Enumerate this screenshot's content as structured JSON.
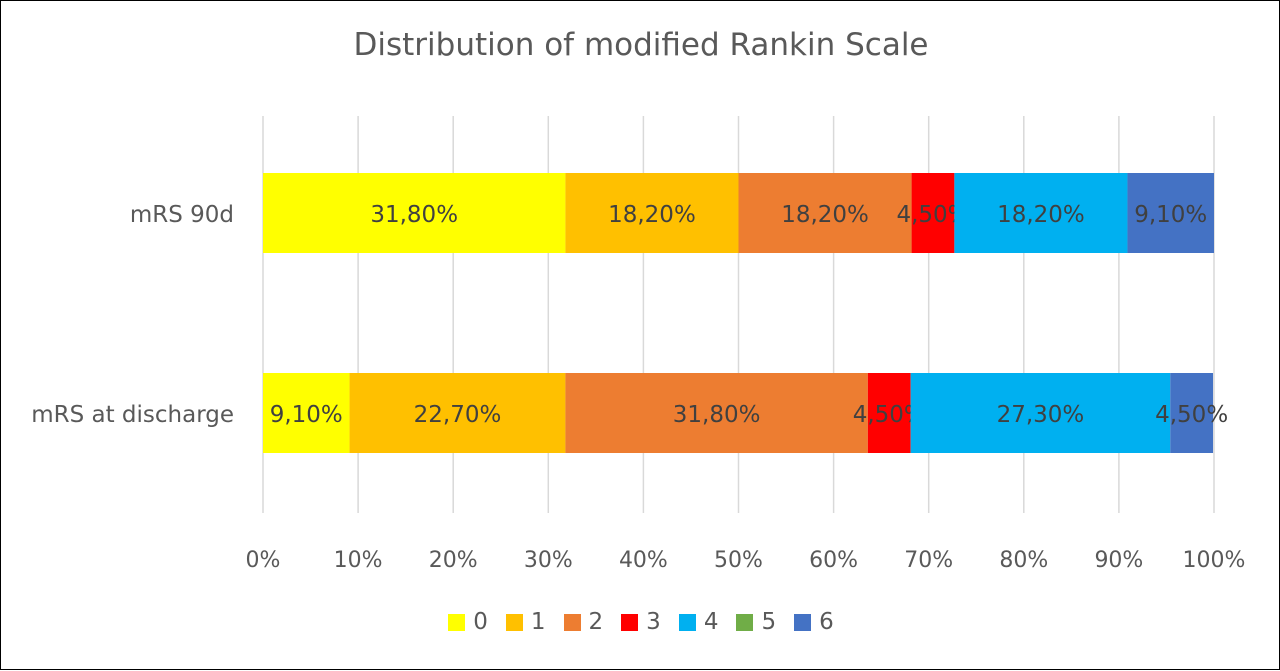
{
  "chart_data": {
    "type": "bar",
    "orientation": "horizontal",
    "stacked": true,
    "title": "Distribution of modified Rankin Scale",
    "categories": [
      "mRS 90d",
      "mRS at discharge"
    ],
    "series": [
      {
        "name": "0",
        "color": "#FFFF00",
        "values": [
          31.8,
          9.1
        ],
        "labels": [
          "31,80%",
          "9,10%"
        ]
      },
      {
        "name": "1",
        "color": "#FFC000",
        "values": [
          18.2,
          22.7
        ],
        "labels": [
          "18,20%",
          "22,70%"
        ]
      },
      {
        "name": "2",
        "color": "#ED7D31",
        "values": [
          18.2,
          31.8
        ],
        "labels": [
          "18,20%",
          "31,80%"
        ]
      },
      {
        "name": "3",
        "color": "#FF0000",
        "values": [
          4.5,
          4.5
        ],
        "labels": [
          "4,50%",
          "4,50%"
        ]
      },
      {
        "name": "4",
        "color": "#00B0F0",
        "values": [
          18.2,
          27.3
        ],
        "labels": [
          "18,20%",
          "27,30%"
        ]
      },
      {
        "name": "5",
        "color": "#70AD47",
        "values": [
          0,
          0
        ],
        "labels": [
          "",
          ""
        ]
      },
      {
        "name": "6",
        "color": "#4472C4",
        "values": [
          9.1,
          4.5
        ],
        "labels": [
          "9,10%",
          "4,50%"
        ]
      }
    ],
    "xlim": [
      0,
      100
    ],
    "x_ticks": [
      "0%",
      "10%",
      "20%",
      "30%",
      "40%",
      "50%",
      "60%",
      "70%",
      "80%",
      "90%",
      "100%"
    ],
    "grid": true,
    "legend_position": "bottom"
  }
}
